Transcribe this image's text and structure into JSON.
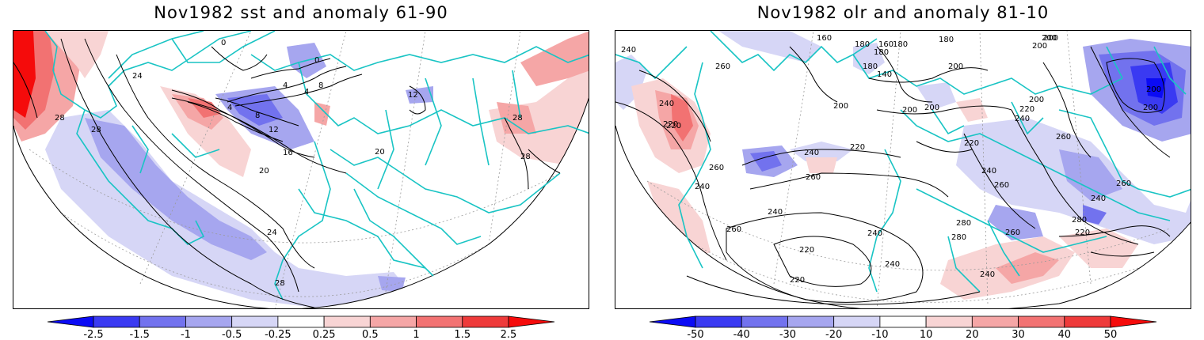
{
  "panels": [
    {
      "id": "sst",
      "title": "Nov1982 sst and anomaly 61-90",
      "contour_labels": [
        "0",
        "4",
        "8",
        "4",
        "0",
        "4",
        "8",
        "12",
        "16",
        "20",
        "20",
        "24",
        "24",
        "28",
        "28",
        "28",
        "28",
        "28",
        "12"
      ],
      "colorbar": {
        "ticks": [
          "-2.5",
          "-1.5",
          "-1",
          "-0.5",
          "-0.25",
          "0.25",
          "0.5",
          "1",
          "1.5",
          "2.5"
        ],
        "colors": [
          "#0b0bf5",
          "#3a3af2",
          "#7272ee",
          "#a6a6ef",
          "#d6d6f6",
          "#ffffff",
          "#f8d4d4",
          "#f5a6a6",
          "#f27272",
          "#ee3a3a",
          "#f50b0b"
        ]
      }
    },
    {
      "id": "olr",
      "title": "Nov1982 olr and anomaly 81-10",
      "contour_labels": [
        "160",
        "180",
        "180",
        "160",
        "180",
        "180",
        "200",
        "200",
        "180",
        "140",
        "200",
        "240",
        "260",
        "240",
        "220",
        "200",
        "200",
        "240",
        "200",
        "240",
        "220",
        "220",
        "220",
        "220",
        "260",
        "240",
        "260",
        "260",
        "240",
        "240",
        "260",
        "260",
        "240",
        "280",
        "280",
        "280",
        "220",
        "260",
        "240",
        "220",
        "240",
        "260",
        "240",
        "220",
        "200",
        "200",
        "200",
        "200"
      ],
      "colorbar": {
        "ticks": [
          "-50",
          "-40",
          "-30",
          "-20",
          "-10",
          "10",
          "20",
          "30",
          "40",
          "50"
        ],
        "colors": [
          "#0b0bf5",
          "#3a3af2",
          "#7272ee",
          "#a6a6ef",
          "#d6d6f6",
          "#ffffff",
          "#f8d4d4",
          "#f5a6a6",
          "#f27272",
          "#ee3a3a",
          "#f50b0b"
        ]
      }
    }
  ]
}
